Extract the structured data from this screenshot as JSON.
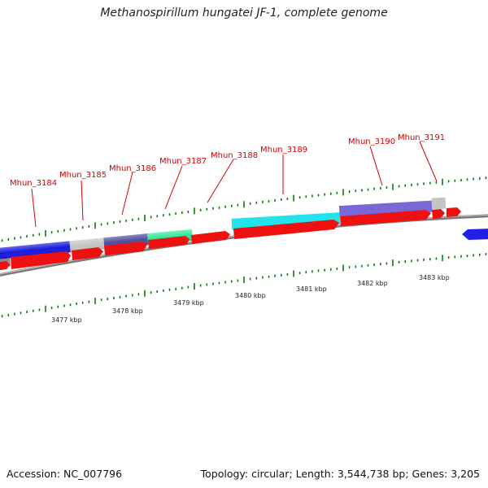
{
  "title": "Methanospirillum hungatei JF-1, complete genome",
  "footer": {
    "accession": "Accession: NC_007796",
    "summary": "Topology: circular; Length: 3,544,738 bp; Genes: 3,205"
  },
  "gene_labels": [
    "Mhun_3184",
    "Mhun_3185",
    "Mhun_3186",
    "Mhun_3187",
    "Mhun_3188",
    "Mhun_3189",
    "Mhun_3190",
    "Mhun_3191"
  ],
  "kbp_labels": [
    "3477 kbp",
    "3478 kbp",
    "3479 kbp",
    "3480 kbp",
    "3481 kbp",
    "3482 kbp",
    "3483 kbp"
  ],
  "colors": {
    "cds_arrow": "#ee1111",
    "backbone": "#888888",
    "tick": "#117711",
    "label": "#d40000",
    "feature_blue": "#1a1adf",
    "feature_grey": "#c4c4c4",
    "feature_navy": "#4e4e9c",
    "feature_green": "#2ee896",
    "feature_cyan": "#22e2ea",
    "feature_slate": "#7a68d6"
  }
}
